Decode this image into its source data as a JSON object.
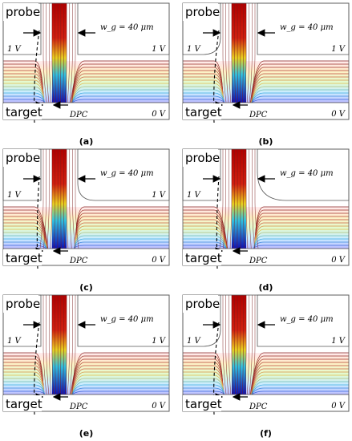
{
  "panels": [
    {
      "caption": "(a)",
      "probe_label": "probe",
      "target_label": "target",
      "wg_label": "w_g = 40 μm",
      "left_voltage": "1 V",
      "right_voltage": "1 V",
      "target_voltage": "0 V",
      "dpc_label": "DPC",
      "probe_shape": "square",
      "field_shape": "tilt-left"
    },
    {
      "caption": "(b)",
      "probe_label": "probe",
      "target_label": "target",
      "wg_label": "w_g = 40 μm",
      "left_voltage": "1 V",
      "right_voltage": "1 V",
      "target_voltage": "0 V",
      "dpc_label": "DPC",
      "probe_shape": "round-left",
      "field_shape": "tilt-left"
    },
    {
      "caption": "(c)",
      "probe_label": "probe",
      "target_label": "target",
      "wg_label": "w_g = 40 μm",
      "left_voltage": "1 V",
      "right_voltage": "1 V",
      "target_voltage": "0 V",
      "dpc_label": "DPC",
      "probe_shape": "round-right",
      "field_shape": "tilt-right"
    },
    {
      "caption": "(d)",
      "probe_label": "probe",
      "target_label": "target",
      "wg_label": "w_g = 40 μm",
      "left_voltage": "1 V",
      "right_voltage": "",
      "target_voltage": "0 V",
      "dpc_label": "DPC",
      "probe_shape": "round-right-large",
      "field_shape": "tilt-right"
    },
    {
      "caption": "(e)",
      "probe_label": "probe",
      "target_label": "target",
      "wg_label": "w_g = 40 μm",
      "left_voltage": "1 V",
      "right_voltage": "1 V",
      "target_voltage": "0 V",
      "dpc_label": "DPC",
      "probe_shape": "square",
      "field_shape": "tilt-left"
    },
    {
      "caption": "(f)",
      "probe_label": "probe",
      "target_label": "target",
      "wg_label": "w_g = 40 μm",
      "left_voltage": "1 V",
      "right_voltage": "1 V",
      "target_voltage": "0 V",
      "dpc_label": "DPC",
      "probe_shape": "round-left",
      "field_shape": "tilt-left"
    }
  ],
  "colors": {
    "frame": "#555555",
    "field_lines_top": "#8a2323",
    "field_lines_mid": "#e6c34a",
    "field_lines_low": "#3fb6e0",
    "field_lines_bottom": "#3b3fd8",
    "hot_channel": "#d01010",
    "mid_channel": "#e8e020",
    "cold_channel": "#1010c0",
    "arrow": "#000000"
  }
}
